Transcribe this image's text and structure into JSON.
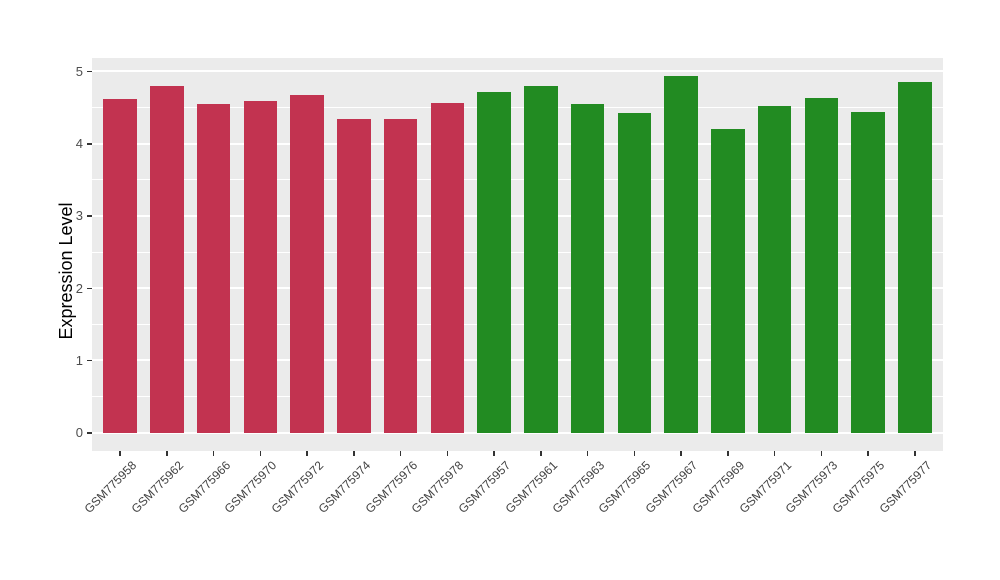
{
  "chart_data": {
    "type": "bar",
    "title": "",
    "xlabel": "",
    "ylabel": "Expression Level",
    "ylim": [
      0,
      5.18
    ],
    "y_ticks": [
      0,
      1,
      2,
      3,
      4,
      5
    ],
    "y_minor_ticks": [
      0.5,
      1.5,
      2.5,
      3.5,
      4.5
    ],
    "grid": true,
    "legend_position": "none",
    "panel_background": "#EBEBEB",
    "gridline_color": "#FFFFFF",
    "categories": [
      "GSM775958",
      "GSM775962",
      "GSM775966",
      "GSM775970",
      "GSM775972",
      "GSM775974",
      "GSM775976",
      "GSM775978",
      "GSM775957",
      "GSM775961",
      "GSM775963",
      "GSM775965",
      "GSM775967",
      "GSM775969",
      "GSM775971",
      "GSM775973",
      "GSM775975",
      "GSM775977"
    ],
    "values": [
      4.62,
      4.8,
      4.55,
      4.59,
      4.67,
      4.34,
      4.34,
      4.56,
      4.71,
      4.79,
      4.55,
      4.42,
      4.93,
      4.2,
      4.52,
      4.63,
      4.43,
      4.85
    ],
    "bar_groups": [
      "red",
      "red",
      "red",
      "red",
      "red",
      "red",
      "red",
      "red",
      "green",
      "green",
      "green",
      "green",
      "green",
      "green",
      "green",
      "green",
      "green",
      "green"
    ],
    "group_colors": {
      "red": "#C23350",
      "green": "#228B22"
    }
  }
}
